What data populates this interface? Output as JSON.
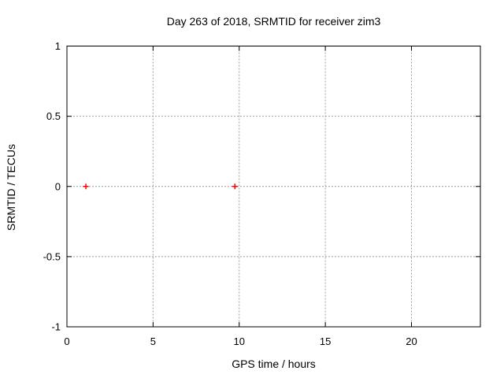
{
  "chart_data": {
    "type": "scatter",
    "title": "Day 263 of 2018, SRMTID for receiver zim3",
    "xlabel": "GPS time / hours",
    "ylabel": "SRMTID / TECUs",
    "xlim": [
      0,
      24
    ],
    "ylim": [
      -1,
      1
    ],
    "xticks": [
      0,
      5,
      10,
      15,
      20
    ],
    "xtick_labels": [
      "0",
      "5",
      "10",
      "15",
      "20"
    ],
    "yticks": [
      -1,
      -0.5,
      0,
      0.5,
      1
    ],
    "ytick_labels": [
      "-1",
      "-0.5",
      "0",
      "0.5",
      "1"
    ],
    "grid": true,
    "grid_style": "dotted",
    "legend_position": "none",
    "series": [
      {
        "name": "SRMTID",
        "marker": "plus",
        "color": "#ff0000",
        "points": [
          {
            "x": 1.1,
            "y": 0.0
          },
          {
            "x": 9.75,
            "y": 0.0
          }
        ]
      }
    ],
    "colors": {
      "background": "#ffffff",
      "frame": "#000000",
      "grid": "#9e9e9e",
      "text": "#000000",
      "marker": "#ff0000"
    }
  }
}
